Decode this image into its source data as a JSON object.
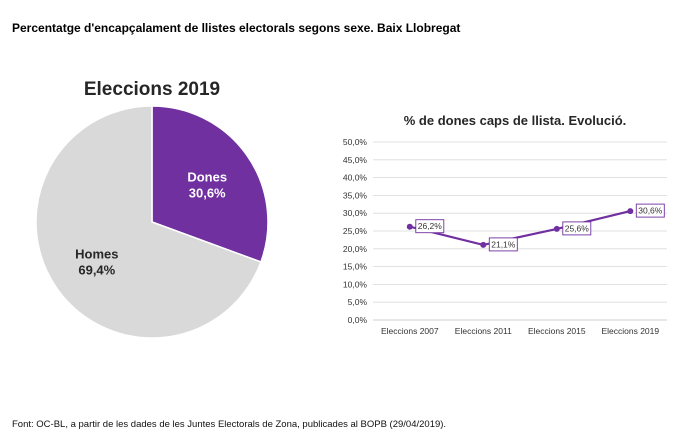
{
  "page": {
    "title": "Percentatge d'encapçalament de llistes electorals segons sexe. Baix Llobregat",
    "source": "Font: OC-BL, a partir de les dades de les Juntes Electorals de Zona, publicades al BOPB (29/04/2019)."
  },
  "colors": {
    "dones": "#7030a0",
    "homes": "#d9d9d9",
    "grid": "#d9d9d9",
    "line": "#7030a0"
  },
  "chart_data": [
    {
      "type": "pie",
      "title": "Eleccions 2019",
      "slices": [
        {
          "name": "Dones",
          "value": 30.6,
          "label": "30,6%"
        },
        {
          "name": "Homes",
          "value": 69.4,
          "label": "69,4%"
        }
      ]
    },
    {
      "type": "line",
      "title": "% de dones caps de llista. Evolució.",
      "categories": [
        "Eleccions 2007",
        "Eleccions 2011",
        "Eleccions 2015",
        "Eleccions 2019"
      ],
      "values": [
        26.2,
        21.1,
        25.6,
        30.6
      ],
      "data_labels": [
        "26,2%",
        "21,1%",
        "25,6%",
        "30,6%"
      ],
      "ylim": [
        0,
        50
      ],
      "yticks": [
        "0,0%",
        "5,0%",
        "10,0%",
        "15,0%",
        "20,0%",
        "25,0%",
        "30,0%",
        "35,0%",
        "40,0%",
        "45,0%",
        "50,0%"
      ],
      "grid": true
    }
  ]
}
